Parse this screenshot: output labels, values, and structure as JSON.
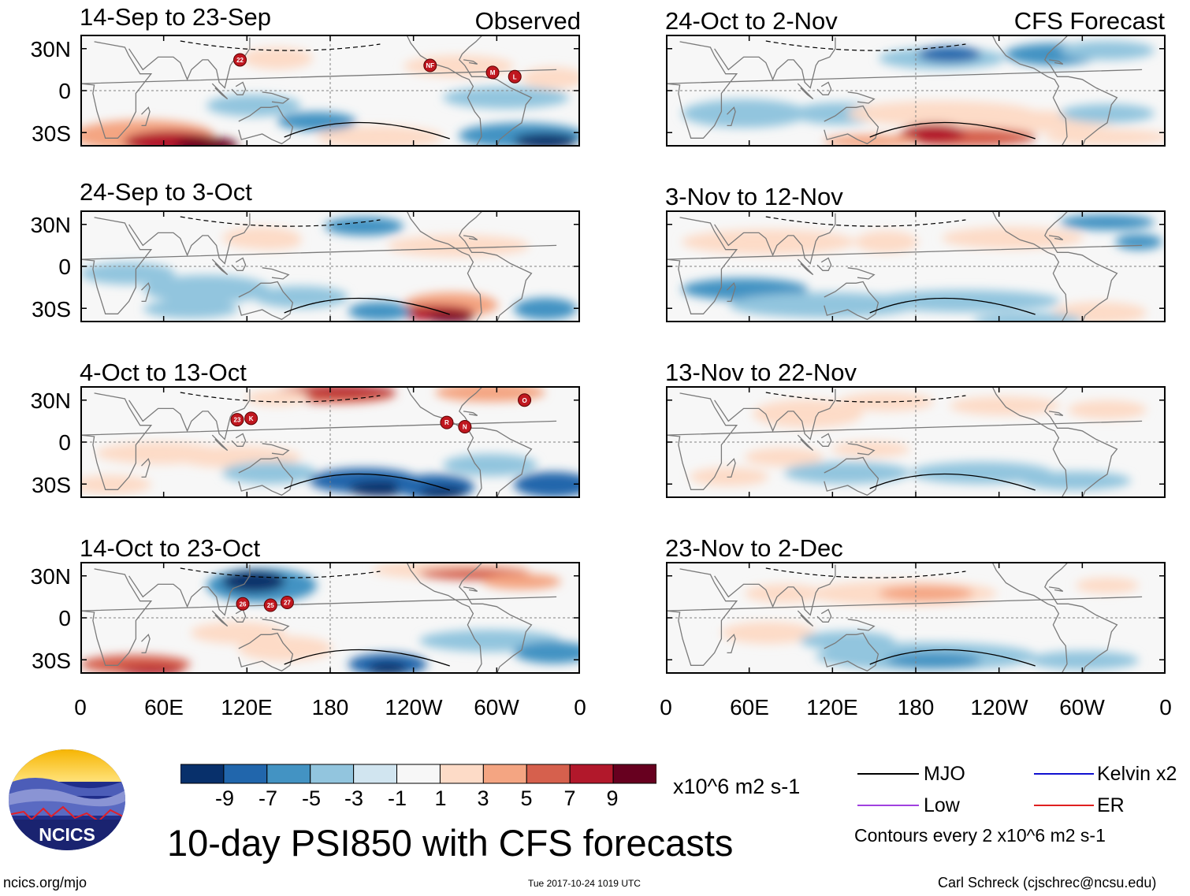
{
  "chart_data": {
    "type": "heatmap",
    "title": "10-day PSI850 with CFS forecasts",
    "units": "x10^6 m2 s-1",
    "x_ticks": [
      "0",
      "60E",
      "120E",
      "180",
      "120W",
      "60W",
      "0"
    ],
    "y_ticks": [
      "30N",
      "0",
      "30S"
    ],
    "colorbar": {
      "ticks": [
        "-9",
        "-7",
        "-5",
        "-3",
        "-1",
        "1",
        "3",
        "5",
        "7",
        "9"
      ],
      "colors": [
        "#08306b",
        "#2166ac",
        "#4393c3",
        "#92c5de",
        "#d1e5f0",
        "#f7f7f7",
        "#fddbc7",
        "#f4a582",
        "#d6604d",
        "#b2182b",
        "#67001f"
      ]
    },
    "column_labels": {
      "observed": "Observed",
      "forecast": "CFS Forecast"
    },
    "panels_observed": [
      {
        "title": "14-Sep to 23-Sep",
        "storms": [
          "22",
          "NF",
          "M",
          "L"
        ]
      },
      {
        "title": "24-Sep to 3-Oct",
        "storms": []
      },
      {
        "title": "4-Oct to 13-Oct",
        "storms": [
          "23",
          "K",
          "R",
          "N",
          "O"
        ]
      },
      {
        "title": "14-Oct to 23-Oct",
        "storms": [
          "26",
          "25",
          "27"
        ]
      }
    ],
    "panels_forecast": [
      {
        "title": "24-Oct to 2-Nov"
      },
      {
        "title": "3-Nov to 12-Nov"
      },
      {
        "title": "13-Nov to 22-Nov"
      },
      {
        "title": "23-Nov to 2-Dec"
      }
    ],
    "legend": {
      "items": [
        {
          "label": "MJO",
          "color": "#000000"
        },
        {
          "label": "Kelvin x2",
          "color": "#1010d0"
        },
        {
          "label": "Low",
          "color": "#a040e0"
        },
        {
          "label": "ER",
          "color": "#e02020"
        }
      ],
      "note": "Contours every 2 x10^6 m2 s-1"
    }
  },
  "logo_text": "NCICS",
  "footer": {
    "url": "ncics.org/mjo",
    "timestamp": "Tue 2017-10-24 1019 UTC",
    "author": "Carl Schreck (cjschrec@ncsu.edu)"
  },
  "colors": {
    "text": "#000000",
    "grid_line": "#808080",
    "coast": "#7a7a7a"
  }
}
